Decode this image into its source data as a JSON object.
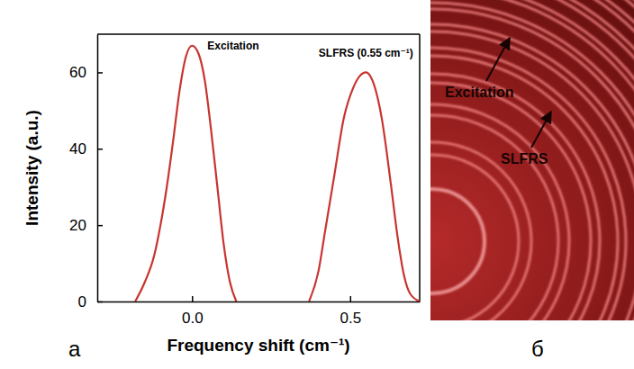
{
  "chart_data": {
    "type": "line",
    "panel_label": "а",
    "x_label": "Frequency shift (cm⁻¹)",
    "y_label": "Intensity (a.u.)",
    "xlim": [
      -0.3,
      0.72
    ],
    "xticks": [
      {
        "value": 0,
        "label": "0.0"
      },
      {
        "value": 0.5,
        "label": "0.5"
      }
    ],
    "ylim": [
      0,
      70
    ],
    "yticks": [
      0,
      20,
      40,
      60
    ],
    "grid": false,
    "series": [
      {
        "color": "#c8342f",
        "x": [
          -0.18,
          -0.15,
          -0.12,
          -0.1,
          -0.08,
          -0.06,
          -0.04,
          -0.02,
          0,
          0.02,
          0.04,
          0.06,
          0.08,
          0.1,
          0.12,
          0.14
        ],
        "values": [
          0,
          5,
          12,
          20,
          30,
          42,
          55,
          64,
          67,
          65,
          58,
          45,
          30,
          15,
          5,
          0
        ]
      },
      {
        "color": "#c8342f",
        "x": [
          0.37,
          0.4,
          0.42,
          0.45,
          0.48,
          0.51,
          0.53,
          0.55,
          0.57,
          0.6,
          0.63,
          0.65,
          0.67,
          0.69,
          0.72
        ],
        "values": [
          0,
          8,
          18,
          33,
          48,
          56,
          59,
          60,
          58,
          48,
          30,
          17,
          7,
          2,
          0
        ]
      }
    ],
    "annotations": [
      {
        "text": "Excitation",
        "x": 0.13,
        "y": 66
      },
      {
        "text": "SLFRS (0.55 cm⁻¹)",
        "x": 0.55,
        "y": 64
      }
    ]
  },
  "photo": {
    "panel_label": "б",
    "labels": [
      "Excitation",
      "SLFRS"
    ]
  }
}
